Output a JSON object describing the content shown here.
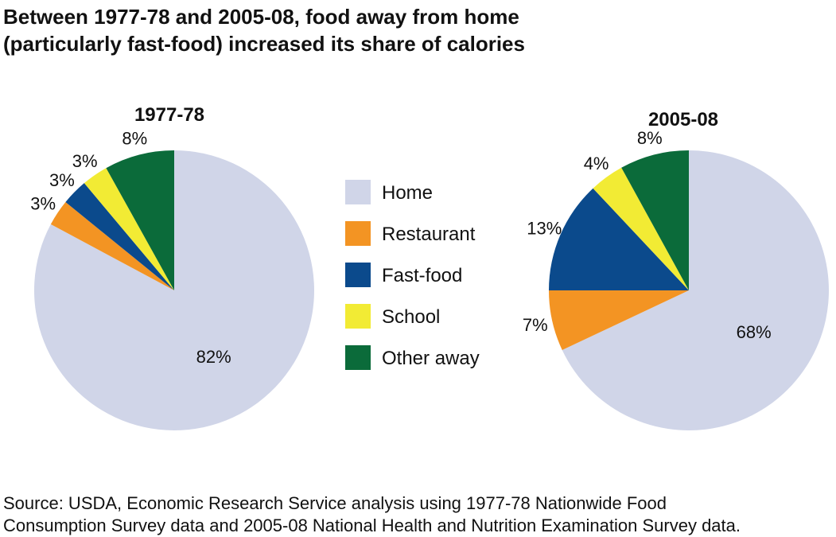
{
  "title_lines": [
    "Between 1977-78 and 2005-08, food away from home",
    "(particularly fast-food) increased its share of calories"
  ],
  "source_lines": [
    "Source: USDA, Economic Research Service analysis using 1977-78 Nationwide Food",
    "Consumption Survey data and 2005-08 National Health and Nutrition Examination Survey data."
  ],
  "chart_data": [
    {
      "type": "pie",
      "title": "1977-78",
      "categories": [
        "Home",
        "Restaurant",
        "Fast-food",
        "School",
        "Other away"
      ],
      "values": [
        82,
        3,
        3,
        3,
        8
      ],
      "labels": [
        "82%",
        "3%",
        "3%",
        "3%",
        "8%"
      ]
    },
    {
      "type": "pie",
      "title": "2005-08",
      "categories": [
        "Home",
        "Restaurant",
        "Fast-food",
        "School",
        "Other away"
      ],
      "values": [
        68,
        7,
        13,
        4,
        8
      ],
      "labels": [
        "68%",
        "7%",
        "13%",
        "4%",
        "8%"
      ]
    }
  ],
  "legend": {
    "items": [
      {
        "label": "Home",
        "color": "#d0d5e8"
      },
      {
        "label": "Restaurant",
        "color": "#f39423"
      },
      {
        "label": "Fast-food",
        "color": "#0b4a8c"
      },
      {
        "label": "School",
        "color": "#f2eb34"
      },
      {
        "label": "Other away",
        "color": "#0b6b3a"
      }
    ]
  }
}
